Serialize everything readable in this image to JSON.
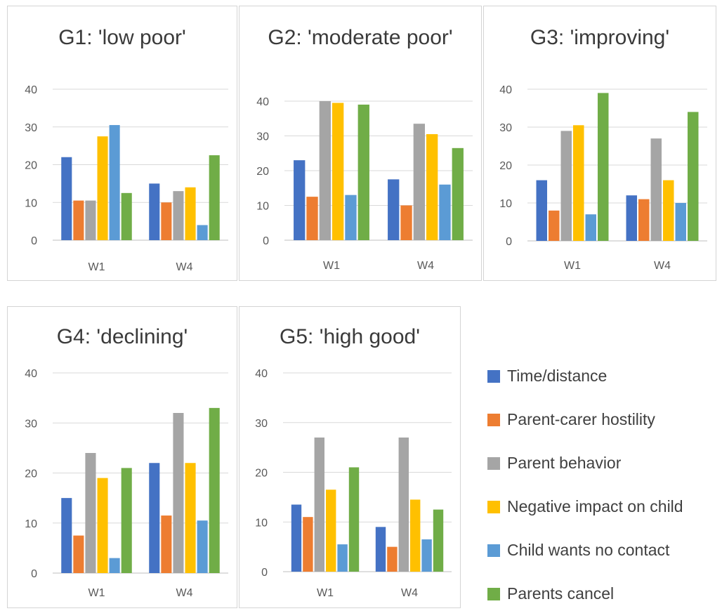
{
  "chart_data": [
    {
      "type": "bar",
      "title": "G1: 'low poor'",
      "categories": [
        "W1",
        "W4"
      ],
      "ylim": [
        0,
        40
      ],
      "yticks": [
        "0",
        "10",
        "20",
        "30",
        "40"
      ],
      "grid": true,
      "series": [
        {
          "name": "Time/distance",
          "values": [
            22,
            15
          ]
        },
        {
          "name": "Parent-carer hostility",
          "values": [
            10.5,
            10
          ]
        },
        {
          "name": "Parent behavior",
          "values": [
            10.5,
            13
          ]
        },
        {
          "name": "Negative impact on child",
          "values": [
            27.5,
            14
          ]
        },
        {
          "name": "Child wants no contact",
          "values": [
            30.5,
            4
          ]
        },
        {
          "name": "Parents cancel",
          "values": [
            12.5,
            22.5
          ]
        }
      ]
    },
    {
      "type": "bar",
      "title": "G2: 'moderate poor'",
      "categories": [
        "W1",
        "W4"
      ],
      "ylim": [
        0,
        40
      ],
      "yticks": [
        "0",
        "10",
        "20",
        "30",
        "40"
      ],
      "grid": true,
      "series": [
        {
          "name": "Time/distance",
          "values": [
            23,
            17.5
          ]
        },
        {
          "name": "Parent-carer hostility",
          "values": [
            12.5,
            10
          ]
        },
        {
          "name": "Parent behavior",
          "values": [
            40,
            33.5
          ]
        },
        {
          "name": "Negative impact on child",
          "values": [
            39.5,
            30.5
          ]
        },
        {
          "name": "Child wants no contact",
          "values": [
            13,
            16
          ]
        },
        {
          "name": "Parents cancel",
          "values": [
            39,
            26.5
          ]
        }
      ]
    },
    {
      "type": "bar",
      "title": "G3: 'improving'",
      "categories": [
        "W1",
        "W4"
      ],
      "ylim": [
        0,
        40
      ],
      "yticks": [
        "0",
        "10",
        "20",
        "30",
        "40"
      ],
      "grid": true,
      "series": [
        {
          "name": "Time/distance",
          "values": [
            16,
            12
          ]
        },
        {
          "name": "Parent-carer hostility",
          "values": [
            8,
            11
          ]
        },
        {
          "name": "Parent behavior",
          "values": [
            29,
            27
          ]
        },
        {
          "name": "Negative impact on child",
          "values": [
            30.5,
            16
          ]
        },
        {
          "name": "Child wants no contact",
          "values": [
            7,
            10
          ]
        },
        {
          "name": "Parents cancel",
          "values": [
            39,
            34
          ]
        }
      ]
    },
    {
      "type": "bar",
      "title": "G4: 'declining'",
      "categories": [
        "W1",
        "W4"
      ],
      "ylim": [
        0,
        40
      ],
      "yticks": [
        "0",
        "10",
        "20",
        "30",
        "40"
      ],
      "grid": true,
      "series": [
        {
          "name": "Time/distance",
          "values": [
            15,
            22
          ]
        },
        {
          "name": "Parent-carer hostility",
          "values": [
            7.5,
            11.5
          ]
        },
        {
          "name": "Parent behavior",
          "values": [
            24,
            32
          ]
        },
        {
          "name": "Negative impact on child",
          "values": [
            19,
            22
          ]
        },
        {
          "name": "Child wants no contact",
          "values": [
            3,
            10.5
          ]
        },
        {
          "name": "Parents cancel",
          "values": [
            21,
            33
          ]
        }
      ]
    },
    {
      "type": "bar",
      "title": "G5: 'high good'",
      "categories": [
        "W1",
        "W4"
      ],
      "ylim": [
        0,
        40
      ],
      "yticks": [
        "0",
        "10",
        "20",
        "30",
        "40"
      ],
      "grid": true,
      "series": [
        {
          "name": "Time/distance",
          "values": [
            13.5,
            9
          ]
        },
        {
          "name": "Parent-carer hostility",
          "values": [
            11,
            5
          ]
        },
        {
          "name": "Parent behavior",
          "values": [
            27,
            27
          ]
        },
        {
          "name": "Negative impact on child",
          "values": [
            16.5,
            14.5
          ]
        },
        {
          "name": "Child wants no contact",
          "values": [
            5.5,
            6.5
          ]
        },
        {
          "name": "Parents cancel",
          "values": [
            21,
            12.5
          ]
        }
      ]
    }
  ],
  "legend": {
    "placement": "bottom-right",
    "items": [
      {
        "label": "Time/distance",
        "color": "#4472c4"
      },
      {
        "label": "Parent-carer hostility",
        "color": "#ed7d31"
      },
      {
        "label": "Parent behavior",
        "color": "#a5a5a5"
      },
      {
        "label": "Negative impact on child",
        "color": "#ffc000"
      },
      {
        "label": "Child wants no contact",
        "color": "#5b9bd5"
      },
      {
        "label": "Parents cancel",
        "color": "#70ad47"
      }
    ]
  }
}
